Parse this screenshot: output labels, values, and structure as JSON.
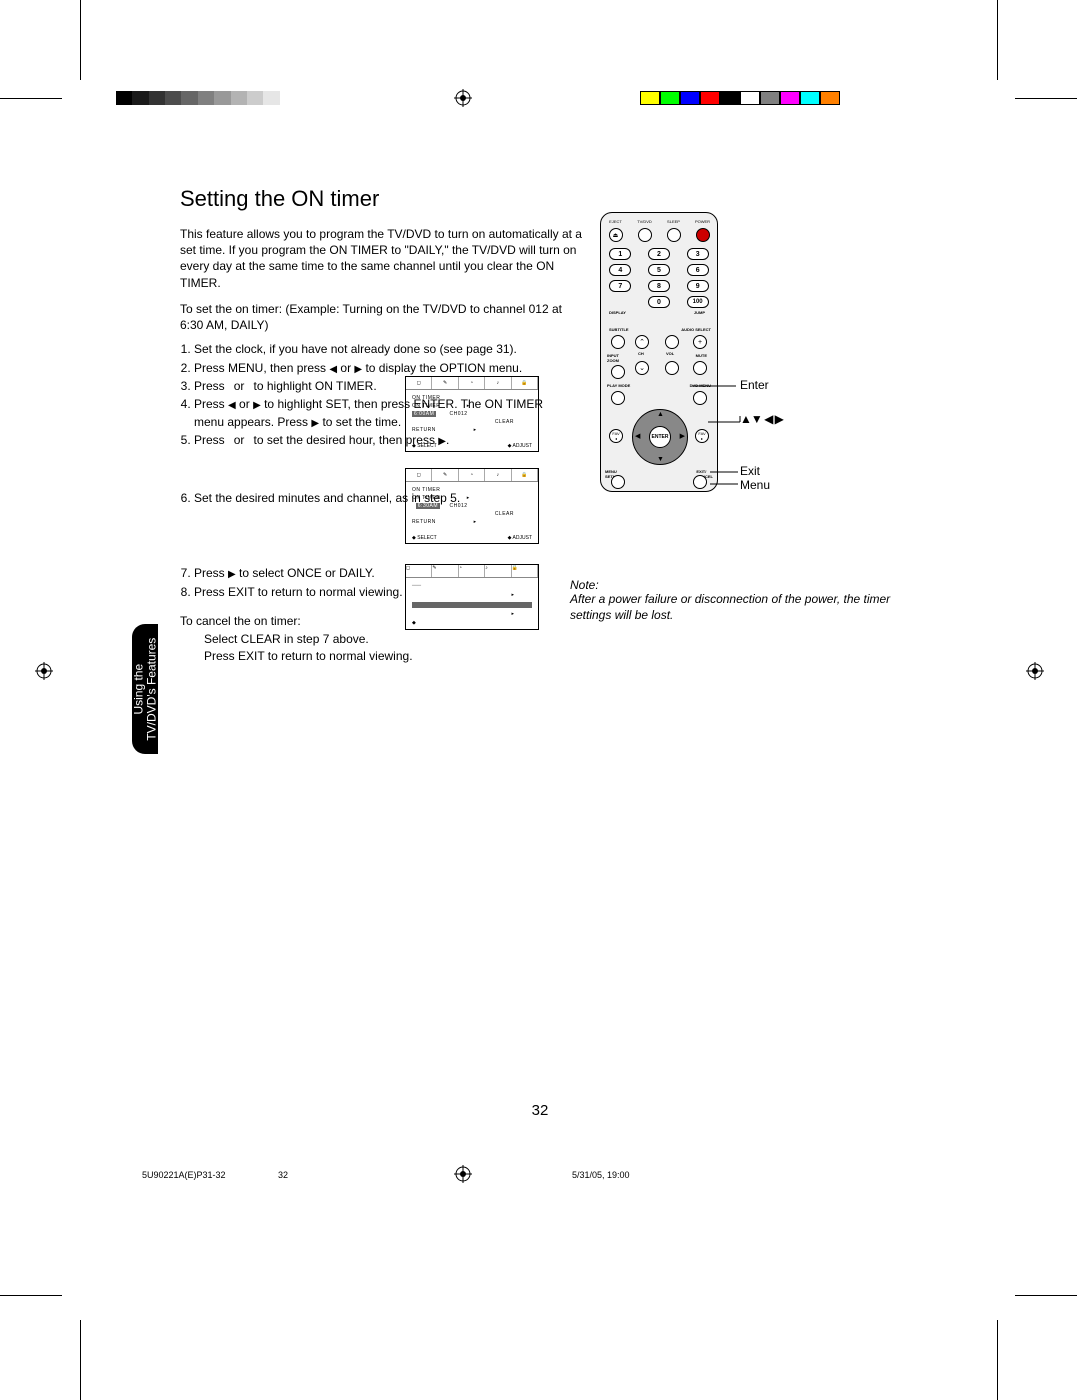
{
  "title": "Setting the ON timer",
  "intro": "This feature allows you to program the TV/DVD to turn on automatically at a set time. If you program the ON TIMER to \"DAILY,\" the TV/DVD will turn on every day at the same time to the same channel until you clear the ON TIMER.",
  "example": "To set the on timer: (Example: Turning on the TV/DVD to channel 012 at 6:30 AM, DAILY)",
  "steps": {
    "s1": "Set the clock, if you have not already done so (see page 31).",
    "s2a": "Press MENU, then press ",
    "s2b": " or ",
    "s2c": " to display the OPTION menu.",
    "s3a": "Press ",
    "s3b": " or ",
    "s3c": " to highlight ON TIMER.",
    "s4a": "Press ",
    "s4b": " or ",
    "s4c": " to highlight SET, then press ENTER. The ON TIMER menu appears. Press ",
    "s4d": " to set the time.",
    "s5a": "Press ",
    "s5b": " or ",
    "s5c": " to set the desired hour, then press ",
    "s5d": ".",
    "s6": "Set the desired minutes and channel, as in step 5.",
    "s7a": "Press ",
    "s7b": " to select ONCE or DAILY.",
    "s8": "Press EXIT to return to normal viewing."
  },
  "cancel": {
    "h": "To cancel the on timer:",
    "l1": "Select CLEAR in step 7 above.",
    "l2": "Press EXIT to return to normal viewing."
  },
  "osd": {
    "on_timer": "ON  TIMER",
    "on_timer_row_a": "ON  TIMER",
    "time_a": "6:00AM",
    "time_b": "6:30AM",
    "ch": "CH012",
    "once": "ONCE",
    "clear": "CLEAR",
    "return": "RETURN",
    "select": "SELECT",
    "adjust": "ADJUST"
  },
  "remote": {
    "top": {
      "eject": "EJECT",
      "tvdvd": "TV/DVD",
      "sleep": "SLEEP",
      "power": "POWER"
    },
    "nums": [
      "1",
      "2",
      "3",
      "4",
      "5",
      "6",
      "7",
      "8",
      "9",
      "0",
      "100"
    ],
    "display": "DISPLAY",
    "jump": "JUMP",
    "subtitle": "SUBTITLE",
    "audiosel": "AUDIO SELECT",
    "inputzoom": "INPUT\nZOOM",
    "ch": "CH",
    "vol": "VOL",
    "mute": "MUTE",
    "playmode": "PLAY MODE",
    "dvdmenu": "DVD MENU",
    "fav": "FAV",
    "enter": "ENTER",
    "menusetup": "MENU\nSETUP",
    "exitcancel": "EXIT/\nCANCEL"
  },
  "callouts": {
    "enter": "Enter",
    "exit": "Exit",
    "menu": "Menu"
  },
  "note": {
    "h": "Note:",
    "b": "After a power failure or disconnection of the power, the timer settings will be lost."
  },
  "sidetab_l1": "Using the",
  "sidetab_l2": "TV/DVD's Features",
  "pagenum": "32",
  "footer": {
    "file": "5U90221A(E)P31-32",
    "p": "32",
    "date": "5/31/05, 19:00"
  },
  "gray_shades": [
    "#000000",
    "#1a1a1a",
    "#333333",
    "#4d4d4d",
    "#666666",
    "#808080",
    "#999999",
    "#b3b3b3",
    "#cccccc",
    "#e6e6e6",
    "#ffffff"
  ],
  "color_swatches": [
    "#ffff00",
    "#00ff00",
    "#0000ff",
    "#ff0000",
    "#000000",
    "#ffffff",
    "#808080",
    "#ff00ff",
    "#00ffff",
    "#ff8000"
  ]
}
